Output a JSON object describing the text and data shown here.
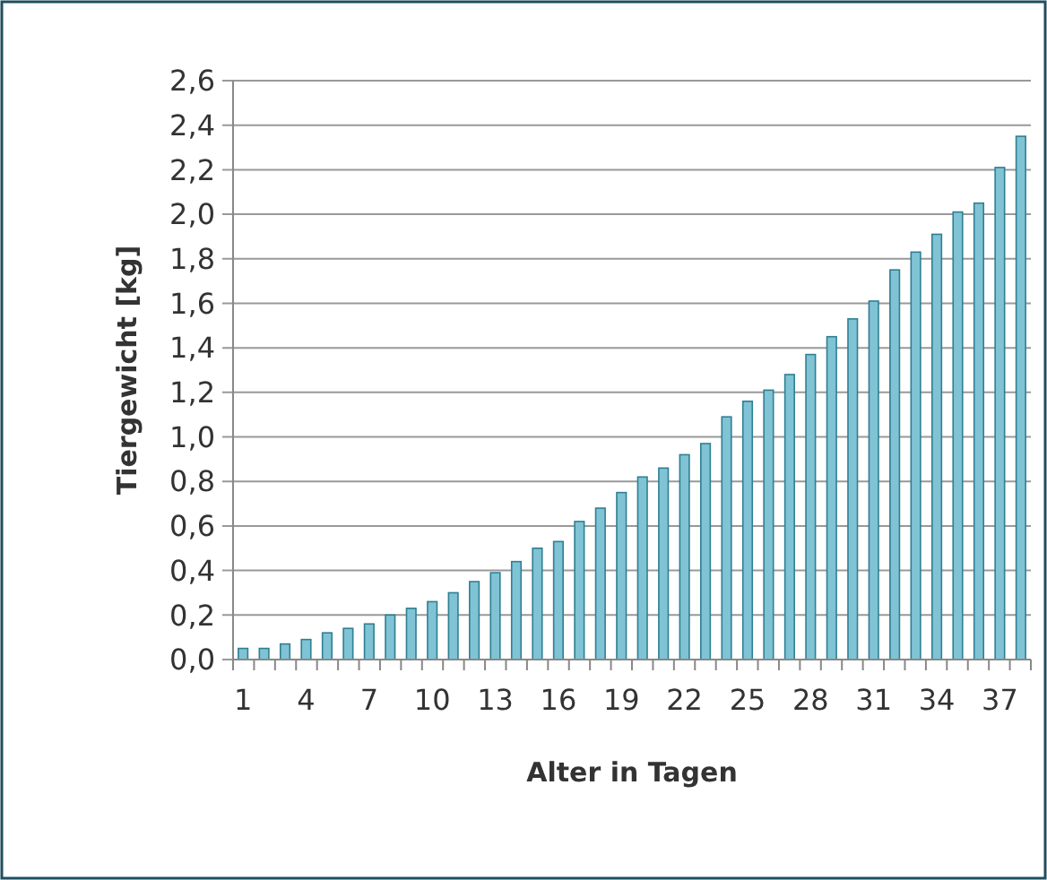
{
  "chart_data": {
    "type": "bar",
    "xlabel": "Alter in Tagen",
    "ylabel": "Tiergewicht [kg]",
    "categories": [
      "1",
      null,
      null,
      "4",
      null,
      null,
      "7",
      null,
      null,
      "10",
      null,
      null,
      "13",
      null,
      null,
      "16",
      null,
      null,
      "19",
      null,
      null,
      "22",
      null,
      null,
      "25",
      null,
      null,
      "28",
      null,
      null,
      "31",
      null,
      null,
      "34",
      null,
      null,
      "37",
      null
    ],
    "values": [
      0.05,
      0.05,
      0.07,
      0.09,
      0.12,
      0.14,
      0.16,
      0.2,
      0.23,
      0.26,
      0.3,
      0.35,
      0.39,
      0.44,
      0.5,
      0.53,
      0.62,
      0.68,
      0.75,
      0.82,
      0.86,
      0.92,
      0.97,
      1.09,
      1.16,
      1.21,
      1.28,
      1.37,
      1.45,
      1.53,
      1.61,
      1.75,
      1.83,
      1.91,
      2.01,
      2.05,
      2.21,
      2.35
    ],
    "color": "#7fc3d4",
    "ylim": [
      0,
      2.6
    ],
    "yticks": [
      {
        "value": 0,
        "label": "0,0"
      },
      {
        "value": 0.2,
        "label": "0,2"
      },
      {
        "value": 0.4,
        "label": "0,4"
      },
      {
        "value": 0.6,
        "label": "0,6"
      },
      {
        "value": 0.8,
        "label": "0,8"
      },
      {
        "value": 1,
        "label": "1,0"
      },
      {
        "value": 1.2,
        "label": "1,2"
      },
      {
        "value": 1.4,
        "label": "1,4"
      },
      {
        "value": 1.6,
        "label": "1,6"
      },
      {
        "value": 1.8,
        "label": "1,8"
      },
      {
        "value": 2,
        "label": "2,0"
      },
      {
        "value": 2.2,
        "label": "2,2"
      },
      {
        "value": 2.4,
        "label": "2,4"
      },
      {
        "value": 2.6,
        "label": "2,6"
      }
    ],
    "grid": "y"
  }
}
